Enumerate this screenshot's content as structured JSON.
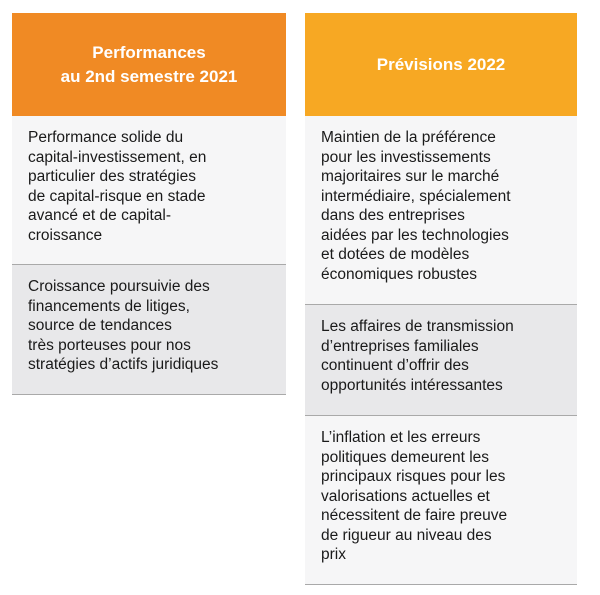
{
  "left": {
    "header": [
      "Performances",
      "au 2nd semestre 2021"
    ],
    "cells": [
      [
        "Performance solide du",
        "capital-investissement, en",
        "particulier des stratégies",
        "de capital-risque en stade",
        "avancé et de capital-",
        "croissance"
      ],
      [
        "Croissance poursuivie des",
        "financements de litiges,",
        "source de tendances",
        "très porteuses pour nos",
        "stratégies d’actifs juridiques"
      ]
    ]
  },
  "right": {
    "header": [
      "Prévisions 2022"
    ],
    "cells": [
      [
        "Maintien de la préférence",
        "pour les investissements",
        "majoritaires sur le marché",
        "intermédiaire, spécialement",
        "dans des entreprises",
        "aidées par les technologies",
        "et dotées de modèles",
        "économiques robustes"
      ],
      [
        "Les affaires de transmission",
        "d’entreprises familiales",
        "continuent d’offrir des",
        "opportunités intéressantes"
      ],
      [
        "L’inflation et les erreurs",
        "politiques demeurent les",
        "principaux risques pour les",
        "valorisations actuelles et",
        "nécessitent de faire preuve",
        "de rigueur au niveau des",
        "prix"
      ]
    ]
  },
  "colors": {
    "left_header": "#f08a24",
    "right_header": "#f7a823",
    "cell_light": "#f6f6f7",
    "cell_dark": "#e8e8ea",
    "divider": "#a9a9a9"
  }
}
